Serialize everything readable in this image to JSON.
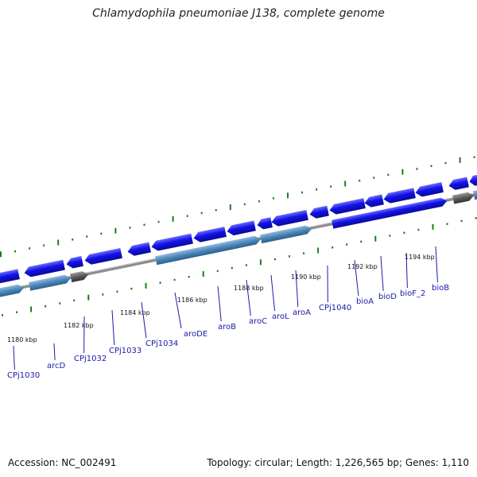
{
  "title": "Chlamydophila pneumoniae J138, complete genome",
  "accession": "Accession: NC_002491",
  "topology": "Topology: circular; Length: 1,226,565 bp; Genes: 1,110",
  "colors": {
    "cds": "#1010e0",
    "rna": "#4a86b8",
    "other": "#5a5a5a",
    "backbone": "#8c8c8c",
    "ticks": "#1e7a1e",
    "label": "#1a1aa6"
  },
  "tick_labels": [
    "1180 kbp",
    "1182 kbp",
    "1184 kbp",
    "1186 kbp",
    "1188 kbp",
    "1190 kbp",
    "1192 kbp",
    "1194 kbp"
  ],
  "gene_labels": [
    "CPj1030",
    "arcD",
    "CPj1032",
    "CPj1033",
    "CPj1034",
    "aroDE",
    "aroB",
    "aroC",
    "aroL",
    "aroA",
    "CPj1040",
    "bioA",
    "bioD",
    "bioF_2",
    "bioB"
  ]
}
